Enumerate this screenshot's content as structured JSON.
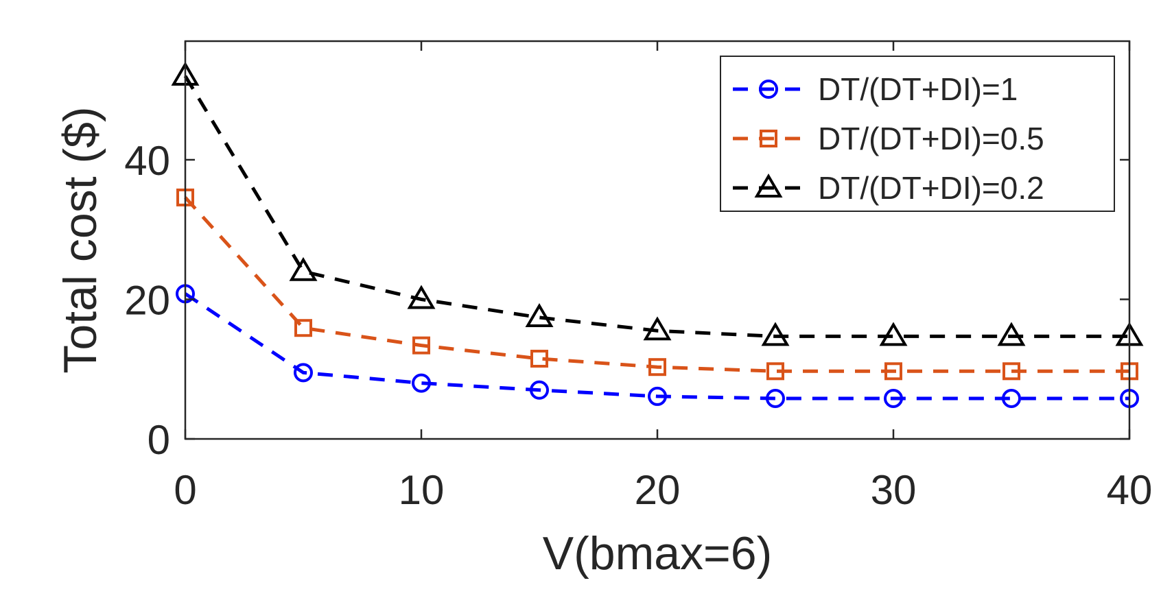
{
  "chart_data": {
    "type": "line",
    "title": "",
    "xlabel": "V(bmax=6)",
    "ylabel": "Total cost ($)",
    "xlim": [
      0,
      40
    ],
    "ylim": [
      0,
      57
    ],
    "xticks": [
      0,
      10,
      20,
      30,
      40
    ],
    "xtick_labels": [
      "0",
      "10",
      "20",
      "30",
      "40"
    ],
    "yticks": [
      0,
      20,
      40
    ],
    "ytick_labels": [
      "0",
      "20",
      "40"
    ],
    "grid": false,
    "legend_position": "top-right",
    "x": [
      0,
      5,
      10,
      15,
      20,
      25,
      30,
      35,
      40
    ],
    "series": [
      {
        "name": "DT/(DT+DI)=1",
        "values": [
          20.8,
          9.5,
          8.0,
          7.0,
          6.1,
          5.8,
          5.8,
          5.8,
          5.8
        ],
        "color": "#0000ff",
        "marker": "circle",
        "line_style": "dashed"
      },
      {
        "name": "DT/(DT+DI)=0.5",
        "values": [
          34.6,
          15.9,
          13.4,
          11.5,
          10.3,
          9.7,
          9.7,
          9.7,
          9.7
        ],
        "color": "#d95319",
        "marker": "square",
        "line_style": "dashed"
      },
      {
        "name": "DT/(DT+DI)=0.2",
        "values": [
          52.0,
          24.0,
          20.0,
          17.4,
          15.5,
          14.7,
          14.7,
          14.7,
          14.7
        ],
        "color": "#000000",
        "marker": "triangle",
        "line_style": "dashed"
      }
    ]
  }
}
